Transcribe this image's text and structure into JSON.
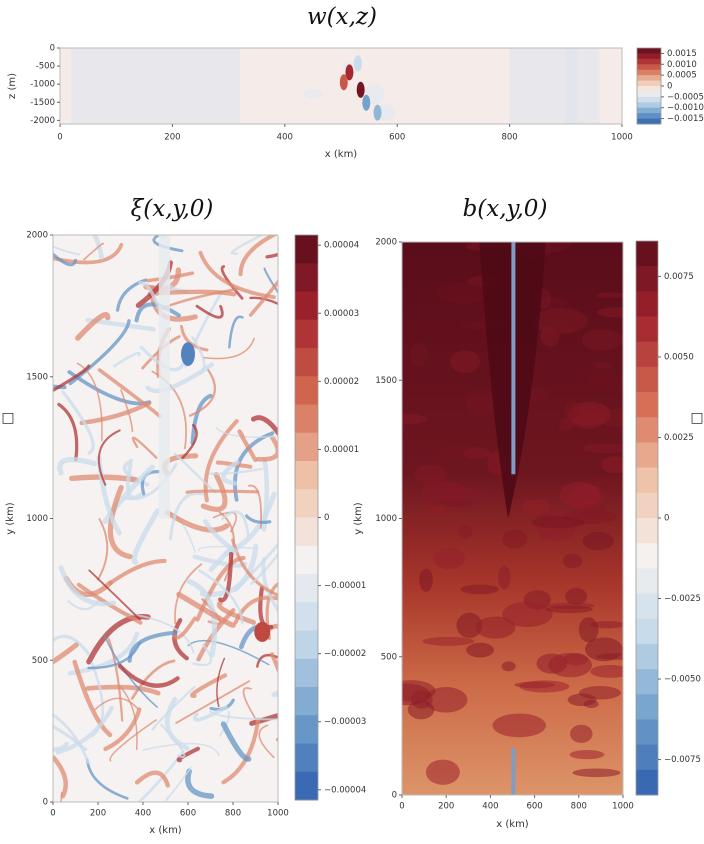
{
  "page": {
    "left_mark": "□",
    "right_mark": "□"
  },
  "chart_data": [
    {
      "type": "heatmap",
      "title": "w(x,z)",
      "xlabel": "x (km)",
      "ylabel": "z (m)",
      "xlim": [
        0,
        1000
      ],
      "xticks": [
        0,
        200,
        400,
        600,
        800,
        1000
      ],
      "ylim": [
        -2100,
        0
      ],
      "yticks": [
        0,
        -500,
        -1000,
        -1500,
        -2000
      ],
      "clim": [
        -0.00175,
        0.00175
      ],
      "cticks": [
        0.0015,
        {
          "value": 0.001,
          "label": "0.0010"
        },
        0.0005,
        0,
        {
          "value": -0.0005,
          "label": "−0.0005"
        },
        {
          "value": -0.001,
          "label": "−0.0010"
        },
        {
          "value": -0.0015,
          "label": "−0.0015"
        }
      ],
      "colormap": [
        "#2f5fae",
        "#6f9fcb",
        "#c4d9ea",
        "#f5f2f0",
        "#efc2a8",
        "#d4694f",
        "#a3242f",
        "#5a0d1a"
      ]
    },
    {
      "type": "heatmap",
      "title": "ξ(x,y,0)",
      "xlabel": "x (km)",
      "ylabel": "y (km)",
      "xlim": [
        0,
        1000
      ],
      "xticks": [
        0,
        200,
        400,
        600,
        800,
        1000
      ],
      "ylim": [
        0,
        2000
      ],
      "yticks": [
        0,
        500,
        1000,
        1500,
        2000
      ],
      "clim": [
        -4.15e-05,
        4.15e-05
      ],
      "cticks": [
        4e-05,
        3e-05,
        2e-05,
        1e-05,
        0,
        {
          "value": -1e-05,
          "label": "−0.00001"
        },
        {
          "value": -2e-05,
          "label": "−0.00002"
        },
        {
          "value": -3e-05,
          "label": "−0.00003"
        },
        {
          "value": -4e-05,
          "label": "−0.00004"
        }
      ],
      "colormap": [
        "#2f5fae",
        "#6f9fcb",
        "#c4d9ea",
        "#f5f2f0",
        "#efc2a8",
        "#d4694f",
        "#a3242f",
        "#5a0d1a"
      ]
    },
    {
      "type": "heatmap",
      "title": "b(x,y,0)",
      "xlabel": "x (km)",
      "ylabel": "y (km)",
      "xlim": [
        0,
        1000
      ],
      "xticks": [
        0,
        200,
        400,
        600,
        800,
        1000
      ],
      "ylim": [
        0,
        2000
      ],
      "yticks": [
        0,
        500,
        1000,
        1500,
        2000
      ],
      "clim": [
        -0.0086,
        0.0086
      ],
      "cticks": [
        0.0075,
        {
          "value": 0.005,
          "label": "0.0050"
        },
        0.0025,
        0,
        {
          "value": -0.0025,
          "label": "−0.0025"
        },
        {
          "value": -0.005,
          "label": "−0.0050"
        },
        {
          "value": -0.0075,
          "label": "−0.0075"
        }
      ],
      "colormap": [
        "#2f5fae",
        "#6f9fcb",
        "#c4d9ea",
        "#f5f2f0",
        "#efc2a8",
        "#d4694f",
        "#a3242f",
        "#5a0d1a"
      ]
    }
  ]
}
